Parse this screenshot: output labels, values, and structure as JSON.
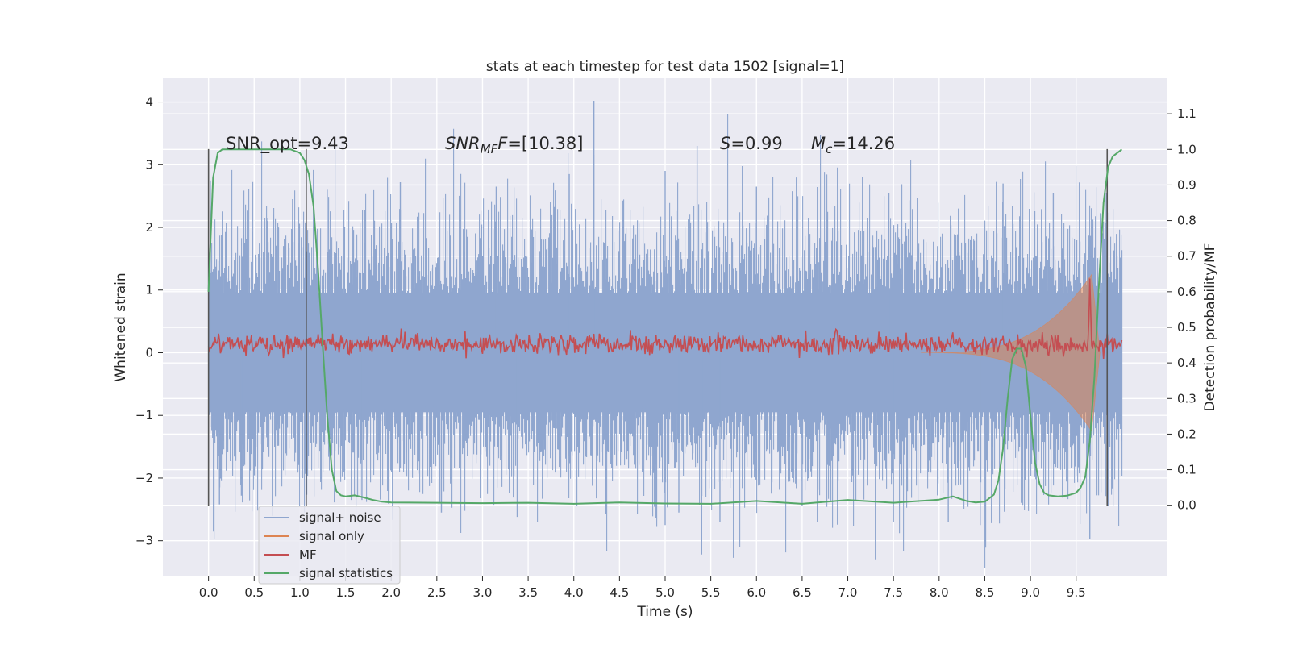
{
  "chart_data": {
    "type": "line",
    "title": "stats at each timestep for test data 1502 [signal=1]",
    "xlabel": "Time (s)",
    "ylabel": "Whitened strain",
    "y2label": "Detection probability/MF",
    "xlim": [
      -0.5,
      10.5
    ],
    "ylim": [
      -3.57,
      4.38
    ],
    "y2lim": [
      -0.2,
      1.2
    ],
    "grid": true,
    "legend_position": "lower-left",
    "xticks": [
      0.0,
      0.5,
      1.0,
      1.5,
      2.0,
      2.5,
      3.0,
      3.5,
      4.0,
      4.5,
      5.0,
      5.5,
      6.0,
      6.5,
      7.0,
      7.5,
      8.0,
      8.5,
      9.0,
      9.5
    ],
    "xtick_labels": [
      "0.0",
      "0.5",
      "1.0",
      "1.5",
      "2.0",
      "2.5",
      "3.0",
      "3.5",
      "4.0",
      "4.5",
      "5.0",
      "5.5",
      "6.0",
      "6.5",
      "7.0",
      "7.5",
      "8.0",
      "8.5",
      "9.0",
      "9.5"
    ],
    "yticks": [
      -3,
      -2,
      -1,
      0,
      1,
      2,
      3,
      4
    ],
    "ytick_labels": [
      "−3",
      "−2",
      "−1",
      "0",
      "1",
      "2",
      "3",
      "4"
    ],
    "y2ticks": [
      0.0,
      0.1,
      0.2,
      0.3,
      0.4,
      0.5,
      0.6,
      0.7,
      0.8,
      0.9,
      1.0,
      1.1
    ],
    "y2tick_labels": [
      "0.0",
      "0.1",
      "0.2",
      "0.3",
      "0.4",
      "0.5",
      "0.6",
      "0.7",
      "0.8",
      "0.9",
      "1.0",
      "1.1"
    ],
    "annotations": {
      "snr_opt": "SNR_opt=9.43",
      "snr_mf_base": "SNR",
      "snr_mf_sub": "MF",
      "snr_mf_value": "=[10.38]",
      "s_symbol": "S",
      "s_value": "=0.99",
      "mc_base": "M",
      "mc_sub": "c",
      "mc_value": "=14.26"
    },
    "vlines": [
      {
        "x": 0.0,
        "y": [
          -2.45,
          3.25
        ]
      },
      {
        "x": 1.07,
        "y": [
          -2.45,
          3.25
        ]
      },
      {
        "x": 9.84,
        "y": [
          -2.45,
          3.25
        ]
      }
    ],
    "series": [
      {
        "name": "signal+ noise",
        "axis": "left",
        "color": "#8fa6cf",
        "noise_level": 0.8,
        "spikes": [
          [
            0.02,
            2.75
          ],
          [
            0.12,
            -2.42
          ],
          [
            0.36,
            -2.28
          ],
          [
            0.65,
            2.15
          ],
          [
            0.92,
            2.45
          ],
          [
            1.3,
            2.6
          ],
          [
            1.68,
            -2.35
          ],
          [
            2.1,
            2.72
          ],
          [
            2.55,
            -2.55
          ],
          [
            3.15,
            2.65
          ],
          [
            3.38,
            -2.62
          ],
          [
            3.95,
            2.85
          ],
          [
            4.22,
            4.02
          ],
          [
            4.35,
            -2.58
          ],
          [
            5.0,
            2.9
          ],
          [
            5.0,
            -2.75
          ],
          [
            5.15,
            -2.55
          ],
          [
            5.35,
            3.3
          ],
          [
            5.4,
            -3.22
          ],
          [
            5.6,
            -2.7
          ],
          [
            6.0,
            2.65
          ],
          [
            6.5,
            -2.45
          ],
          [
            7.45,
            2.55
          ],
          [
            7.5,
            -2.7
          ],
          [
            8.1,
            -2.7
          ],
          [
            8.45,
            -2.75
          ],
          [
            8.7,
            2.7
          ],
          [
            9.25,
            2.55
          ],
          [
            9.65,
            -2.97
          ],
          [
            9.83,
            2.55
          ],
          [
            9.85,
            -2.45
          ]
        ]
      },
      {
        "name": "signal only",
        "axis": "left",
        "color": "#dd8452",
        "chirp": {
          "start": 7.8,
          "merger": 9.67,
          "end": 9.76,
          "peak_amplitude": 1.25
        }
      },
      {
        "name": "MF",
        "axis": "left",
        "color": "#c44e52",
        "baseline": 0.14,
        "noise_level": 0.08,
        "bumps": [
          [
            6.87,
            0.45
          ],
          [
            9.65,
            1.05
          ]
        ]
      },
      {
        "name": "signal statistics",
        "axis": "right",
        "color": "#55a868",
        "x": [
          0.0,
          0.05,
          0.1,
          0.15,
          0.2,
          0.3,
          0.4,
          0.5,
          0.6,
          0.7,
          0.8,
          0.9,
          0.95,
          1.0,
          1.05,
          1.1,
          1.15,
          1.2,
          1.25,
          1.3,
          1.35,
          1.4,
          1.45,
          1.5,
          1.6,
          1.7,
          1.8,
          1.9,
          2.0,
          2.5,
          3.0,
          3.5,
          4.0,
          4.5,
          5.0,
          5.5,
          6.0,
          6.5,
          7.0,
          7.5,
          8.0,
          8.15,
          8.3,
          8.4,
          8.5,
          8.6,
          8.65,
          8.7,
          8.75,
          8.8,
          8.85,
          8.9,
          8.95,
          9.0,
          9.05,
          9.1,
          9.15,
          9.2,
          9.3,
          9.4,
          9.5,
          9.55,
          9.6,
          9.65,
          9.7,
          9.75,
          9.8,
          9.85,
          9.9,
          9.95,
          10.0
        ],
        "y": [
          0.6,
          0.92,
          0.99,
          1.0,
          1.0,
          1.0,
          1.0,
          1.0,
          1.0,
          1.0,
          1.0,
          1.0,
          0.995,
          0.99,
          0.97,
          0.93,
          0.84,
          0.66,
          0.45,
          0.25,
          0.1,
          0.04,
          0.028,
          0.025,
          0.028,
          0.022,
          0.015,
          0.01,
          0.008,
          0.007,
          0.006,
          0.007,
          0.004,
          0.008,
          0.005,
          0.004,
          0.012,
          0.004,
          0.015,
          0.007,
          0.016,
          0.025,
          0.012,
          0.008,
          0.01,
          0.03,
          0.07,
          0.16,
          0.3,
          0.41,
          0.44,
          0.44,
          0.39,
          0.25,
          0.12,
          0.06,
          0.035,
          0.028,
          0.025,
          0.027,
          0.035,
          0.05,
          0.08,
          0.18,
          0.36,
          0.62,
          0.85,
          0.95,
          0.98,
          0.99,
          1.0
        ]
      }
    ]
  }
}
